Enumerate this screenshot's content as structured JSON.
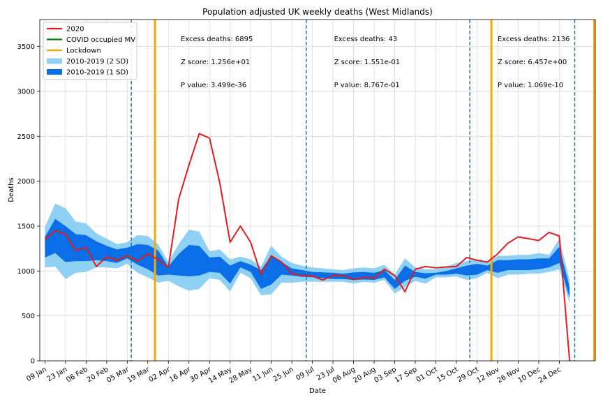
{
  "chart_data": {
    "type": "line",
    "title": "Population adjusted UK weekly deaths (West Midlands)",
    "xlabel": "Date",
    "ylabel": "Deaths",
    "ylim": [
      0,
      3800
    ],
    "xlim": [
      -0.5,
      53.5
    ],
    "grid": true,
    "legend_position": "top-left",
    "yticks": [
      0,
      500,
      1000,
      1500,
      2000,
      2500,
      3000,
      3500
    ],
    "xticks": [
      {
        "x": 0,
        "label": "09 Jan"
      },
      {
        "x": 2,
        "label": "23 Jan"
      },
      {
        "x": 4,
        "label": "06 Feb"
      },
      {
        "x": 6,
        "label": "20 Feb"
      },
      {
        "x": 8,
        "label": "05 Mar"
      },
      {
        "x": 10,
        "label": "19 Mar"
      },
      {
        "x": 12,
        "label": "02 Apr"
      },
      {
        "x": 14,
        "label": "16 Apr"
      },
      {
        "x": 16,
        "label": "30 Apr"
      },
      {
        "x": 18,
        "label": "14 May"
      },
      {
        "x": 20,
        "label": "28 May"
      },
      {
        "x": 22,
        "label": "11 Jun"
      },
      {
        "x": 24,
        "label": "25 Jun"
      },
      {
        "x": 26,
        "label": "09 Jul"
      },
      {
        "x": 28,
        "label": "23 Jul"
      },
      {
        "x": 30,
        "label": "06 Aug"
      },
      {
        "x": 32,
        "label": "20 Aug"
      },
      {
        "x": 34,
        "label": "03 Sep"
      },
      {
        "x": 36,
        "label": "17 Sep"
      },
      {
        "x": 38,
        "label": "01 Oct"
      },
      {
        "x": 40,
        "label": "15 Oct"
      },
      {
        "x": 42,
        "label": "29 Oct"
      },
      {
        "x": 44,
        "label": "12 Nov"
      },
      {
        "x": 46,
        "label": "26 Nov"
      },
      {
        "x": 48,
        "label": "10 Dec"
      },
      {
        "x": 50,
        "label": "24 Dec"
      }
    ],
    "series": [
      {
        "name": "2020",
        "color": "#e41a1c",
        "x": [
          0,
          1,
          2,
          3,
          4,
          5,
          6,
          7,
          8,
          9,
          10,
          11,
          12,
          13,
          14,
          15,
          16,
          17,
          18,
          19,
          20,
          21,
          22,
          23,
          24,
          25,
          26,
          27,
          28,
          29,
          30,
          31,
          32,
          33,
          34,
          35,
          36,
          37,
          38,
          39,
          40,
          41,
          42,
          43,
          44,
          45,
          46,
          47,
          48,
          49,
          50,
          51
        ],
        "values": [
          1350,
          1450,
          1410,
          1230,
          1260,
          1050,
          1160,
          1120,
          1170,
          1110,
          1190,
          1130,
          1040,
          1800,
          2180,
          2530,
          2480,
          1980,
          1320,
          1500,
          1320,
          960,
          1170,
          1100,
          970,
          950,
          945,
          900,
          950,
          950,
          905,
          930,
          920,
          1020,
          950,
          770,
          1020,
          1050,
          1035,
          1045,
          1050,
          1150,
          1120,
          1100,
          1190,
          1310,
          1380,
          1360,
          1340,
          1430,
          1390,
          0
        ]
      },
      {
        "name": "COVID occupied MV",
        "color": "#008000",
        "x": [],
        "values": []
      }
    ],
    "bands": [
      {
        "name": "2010-2019 (2 SD)",
        "color": "#8fd0f5",
        "x": [
          0,
          1,
          2,
          3,
          4,
          5,
          6,
          7,
          8,
          9,
          10,
          11,
          12,
          13,
          14,
          15,
          16,
          17,
          18,
          19,
          20,
          21,
          22,
          23,
          24,
          25,
          26,
          27,
          28,
          29,
          30,
          31,
          32,
          33,
          34,
          35,
          36,
          37,
          38,
          39,
          40,
          41,
          42,
          43,
          44,
          45,
          46,
          47,
          48,
          49,
          50,
          51
        ],
        "upper": [
          1490,
          1750,
          1700,
          1550,
          1530,
          1420,
          1360,
          1300,
          1320,
          1400,
          1390,
          1300,
          1100,
          1300,
          1460,
          1440,
          1220,
          1240,
          1130,
          1160,
          1130,
          1050,
          1280,
          1160,
          1090,
          1060,
          1040,
          1030,
          1020,
          1010,
          1030,
          1040,
          1030,
          1070,
          960,
          1140,
          1040,
          1020,
          1020,
          1050,
          1090,
          1110,
          1130,
          1100,
          1170,
          1170,
          1180,
          1180,
          1200,
          1180,
          1360,
          900
        ],
        "lower": [
          1040,
          1050,
          910,
          980,
          990,
          1040,
          1040,
          1030,
          1080,
          980,
          930,
          870,
          890,
          830,
          780,
          800,
          920,
          900,
          770,
          980,
          920,
          730,
          740,
          870,
          870,
          880,
          880,
          880,
          880,
          880,
          860,
          880,
          870,
          900,
          750,
          820,
          890,
          860,
          930,
          930,
          940,
          900,
          920,
          980,
          920,
          960,
          960,
          970,
          970,
          990,
          1020,
          640
        ]
      },
      {
        "name": "2010-2019 (1 SD)",
        "color": "#0a6ee8",
        "x": [
          0,
          1,
          2,
          3,
          4,
          5,
          6,
          7,
          8,
          9,
          10,
          11,
          12,
          13,
          14,
          15,
          16,
          17,
          18,
          19,
          20,
          21,
          22,
          23,
          24,
          25,
          26,
          27,
          28,
          29,
          30,
          31,
          32,
          33,
          34,
          35,
          36,
          37,
          38,
          39,
          40,
          41,
          42,
          43,
          44,
          45,
          46,
          47,
          48,
          49,
          50,
          51
        ],
        "upper": [
          1380,
          1580,
          1500,
          1410,
          1400,
          1330,
          1280,
          1240,
          1260,
          1300,
          1290,
          1230,
          1050,
          1190,
          1290,
          1280,
          1150,
          1160,
          1060,
          1110,
          1070,
          1010,
          1170,
          1100,
          1030,
          1010,
          990,
          985,
          980,
          970,
          985,
          990,
          980,
          1010,
          900,
          1060,
          990,
          975,
          980,
          1000,
          1030,
          1060,
          1080,
          1060,
          1120,
          1120,
          1130,
          1130,
          1140,
          1140,
          1270,
          820
        ],
        "lower": [
          1150,
          1200,
          1100,
          1110,
          1110,
          1120,
          1110,
          1090,
          1140,
          1070,
          1020,
          950,
          960,
          950,
          940,
          950,
          990,
          980,
          860,
          1040,
          990,
          800,
          850,
          960,
          950,
          935,
          930,
          920,
          910,
          910,
          900,
          905,
          900,
          930,
          800,
          890,
          935,
          915,
          960,
          960,
          970,
          950,
          960,
          1010,
          980,
          1010,
          1010,
          1010,
          1020,
          1040,
          1090,
          700
        ]
      }
    ],
    "markers": [
      {
        "name": "Lockdown",
        "color": "#ffa500",
        "x": [
          10.7,
          43.4,
          53.4
        ]
      },
      {
        "name": "period-boundary",
        "color": "#1f77b4",
        "style": "dashed",
        "x": [
          8.4,
          25.4,
          41.3,
          51.5
        ]
      }
    ],
    "annotations": [
      {
        "x": 13.2,
        "lines": [
          "Excess deaths: 6895",
          "Z score: 1.256e+01",
          "P value: 3.499e-36"
        ]
      },
      {
        "x": 28.1,
        "lines": [
          "Excess deaths: 43",
          "Z score: 1.551e-01",
          "P value: 8.767e-01"
        ]
      },
      {
        "x": 44.0,
        "lines": [
          "Excess deaths: 2136",
          "Z score: 6.457e+00",
          "P value: 1.069e-10"
        ]
      }
    ],
    "legend": [
      {
        "label": "2020",
        "kind": "line",
        "color": "#e41a1c"
      },
      {
        "label": "COVID occupied MV",
        "kind": "line",
        "color": "#008000"
      },
      {
        "label": "Lockdown",
        "kind": "line",
        "color": "#ffa500"
      },
      {
        "label": "2010-2019 (2 SD)",
        "kind": "patch",
        "color": "#8fd0f5"
      },
      {
        "label": "2010-2019 (1 SD)",
        "kind": "patch",
        "color": "#0a6ee8"
      }
    ]
  }
}
